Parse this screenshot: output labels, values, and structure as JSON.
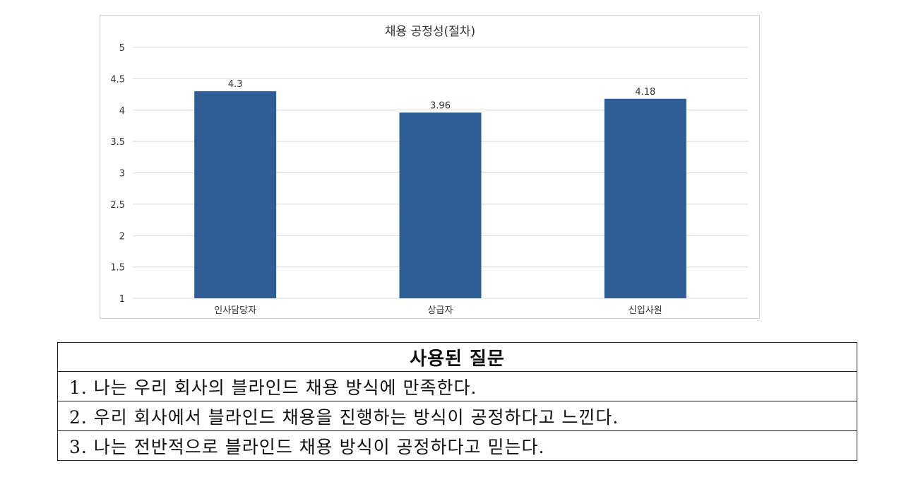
{
  "chart_data": {
    "type": "bar",
    "title": "채용 공정성(절차)",
    "categories": [
      "인사담당자",
      "상급자",
      "신입사원"
    ],
    "values": [
      4.3,
      3.96,
      4.18
    ],
    "data_labels": [
      "4.3",
      "3.96",
      "4.18"
    ],
    "ylim": [
      1,
      5
    ],
    "yticks": [
      "1",
      "1.5",
      "2",
      "2.5",
      "3",
      "3.5",
      "4",
      "4.5",
      "5"
    ],
    "xlabel": "",
    "ylabel": "",
    "grid": true,
    "bar_color": "#2f5d96",
    "grid_color": "#d9d9d9"
  },
  "questions": {
    "header": "사용된 질문",
    "items": [
      "1. 나는 우리 회사의 블라인드 채용 방식에 만족한다.",
      "2. 우리 회사에서 블라인드 채용을 진행하는 방식이 공정하다고 느낀다.",
      "3. 나는 전반적으로 블라인드 채용 방식이 공정하다고 믿는다."
    ]
  }
}
